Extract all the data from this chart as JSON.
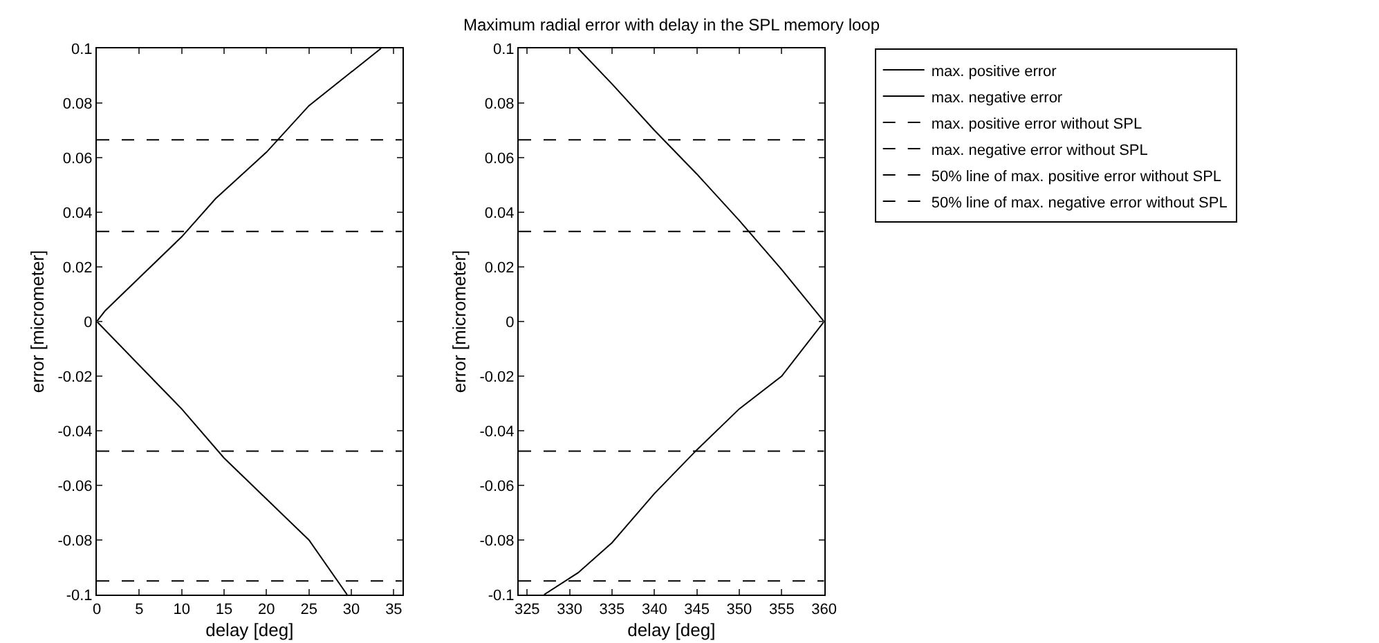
{
  "chart_data": [
    {
      "type": "line",
      "xlabel": "delay [deg]",
      "ylabel": "error [micrometer]",
      "xlim": [
        0,
        36
      ],
      "xticks": [
        0,
        5,
        10,
        15,
        20,
        25,
        30,
        35
      ],
      "ylim": [
        -0.1,
        0.1
      ],
      "yticks": [
        -0.1,
        -0.08,
        -0.06,
        -0.04,
        -0.02,
        0,
        0.02,
        0.04,
        0.06,
        0.08,
        0.1
      ],
      "grid": false,
      "marker": "none",
      "series": [
        {
          "color": "#000000",
          "line_style": "solid",
          "x": [
            0,
            1,
            5,
            10,
            14,
            20,
            25,
            33.5
          ],
          "values": [
            0,
            0.004,
            0.016,
            0.031,
            0.045,
            0.062,
            0.079,
            0.1
          ]
        },
        {
          "color": "#000000",
          "line_style": "solid",
          "x": [
            0,
            5,
            10,
            15,
            20,
            25,
            29.5
          ],
          "values": [
            0,
            -0.016,
            -0.032,
            -0.05,
            -0.065,
            -0.08,
            -0.1
          ]
        },
        {
          "color": "#000000",
          "line_style": "dashed",
          "x": [
            0,
            36
          ],
          "values": [
            0.0665,
            0.0665
          ]
        },
        {
          "color": "#000000",
          "line_style": "dashed",
          "x": [
            0,
            36
          ],
          "values": [
            -0.095,
            -0.095
          ]
        },
        {
          "color": "#000000",
          "line_style": "dashed",
          "x": [
            0,
            36
          ],
          "values": [
            0.033,
            0.033
          ]
        },
        {
          "color": "#000000",
          "line_style": "dashed",
          "x": [
            0,
            36
          ],
          "values": [
            -0.0475,
            -0.0475
          ]
        }
      ]
    },
    {
      "type": "line",
      "title": "Maximum radial error with delay in the SPL memory loop",
      "xlabel": "delay [deg]",
      "ylabel": "error [micrometer]",
      "xlim": [
        324,
        360
      ],
      "xticks": [
        325,
        330,
        335,
        340,
        345,
        350,
        355,
        360
      ],
      "ylim": [
        -0.1,
        0.1
      ],
      "yticks": [
        -0.1,
        -0.08,
        -0.06,
        -0.04,
        -0.02,
        0,
        0.02,
        0.04,
        0.06,
        0.08,
        0.1
      ],
      "grid": false,
      "legend": "right",
      "marker": "none",
      "series": [
        {
          "name": "max. positive error",
          "color": "#000000",
          "line_style": "solid",
          "x": [
            331,
            335,
            340,
            345,
            350,
            355,
            360
          ],
          "values": [
            0.1,
            0.087,
            0.07,
            0.054,
            0.037,
            0.019,
            0
          ]
        },
        {
          "name": "max. negative error",
          "color": "#000000",
          "line_style": "solid",
          "x": [
            327,
            331,
            335,
            340,
            345,
            350,
            355,
            360
          ],
          "values": [
            -0.1,
            -0.092,
            -0.081,
            -0.063,
            -0.047,
            -0.032,
            -0.02,
            0
          ]
        },
        {
          "name": "max. positive error without SPL",
          "color": "#000000",
          "line_style": "dashed",
          "x": [
            324,
            360
          ],
          "values": [
            0.0665,
            0.0665
          ]
        },
        {
          "name": "max. negative error without SPL",
          "color": "#000000",
          "line_style": "dashed",
          "x": [
            324,
            360
          ],
          "values": [
            -0.095,
            -0.095
          ]
        },
        {
          "name": "50% line of max. positive error without SPL",
          "color": "#000000",
          "line_style": "dashed",
          "x": [
            324,
            360
          ],
          "values": [
            0.033,
            0.033
          ]
        },
        {
          "name": "50% line of max. negative error without SPL",
          "color": "#000000",
          "line_style": "dashed",
          "x": [
            324,
            360
          ],
          "values": [
            -0.0475,
            -0.0475
          ]
        }
      ]
    }
  ]
}
